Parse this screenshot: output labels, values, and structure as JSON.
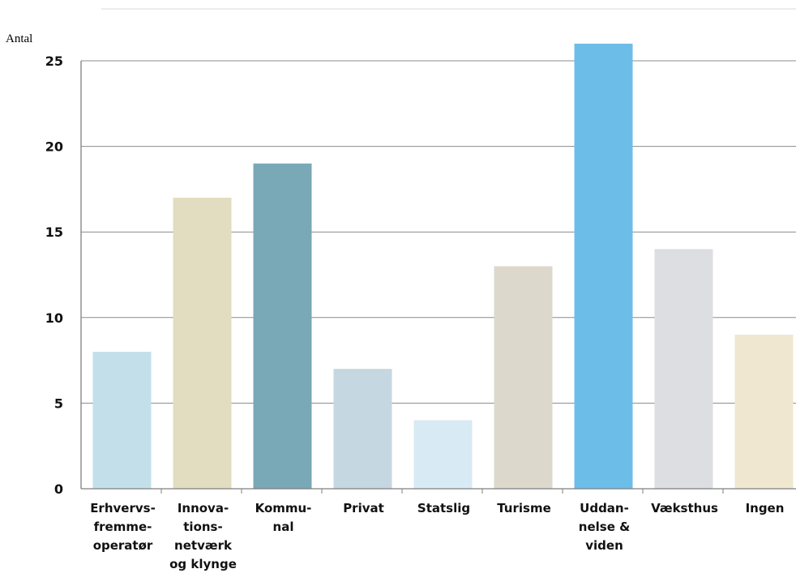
{
  "chart_data": {
    "type": "bar",
    "title": "",
    "xlabel": "",
    "ylabel": "Antal",
    "ylim": [
      0,
      25
    ],
    "yticks": [
      0,
      5,
      10,
      15,
      20,
      25
    ],
    "grid": true,
    "categories": [
      [
        "Erhvervs-",
        "fremme-",
        "operatør"
      ],
      [
        "Innova-",
        "tions-",
        "netværk",
        "og klynge"
      ],
      [
        "Kommu-",
        "nal"
      ],
      [
        "Privat"
      ],
      [
        "Statslig"
      ],
      [
        "Turisme"
      ],
      [
        "Uddan-",
        "nelse &",
        "viden"
      ],
      [
        "Væksthus"
      ],
      [
        "Ingen"
      ]
    ],
    "values": [
      8,
      17,
      19,
      7,
      4,
      13,
      26,
      14,
      9
    ],
    "colors": [
      "#c3e0ea",
      "#e2dcc0",
      "#79a8b7",
      "#c5d7e1",
      "#d8eaf3",
      "#dcd8cb",
      "#6dbde9",
      "#dddee1",
      "#efe7d0"
    ]
  }
}
